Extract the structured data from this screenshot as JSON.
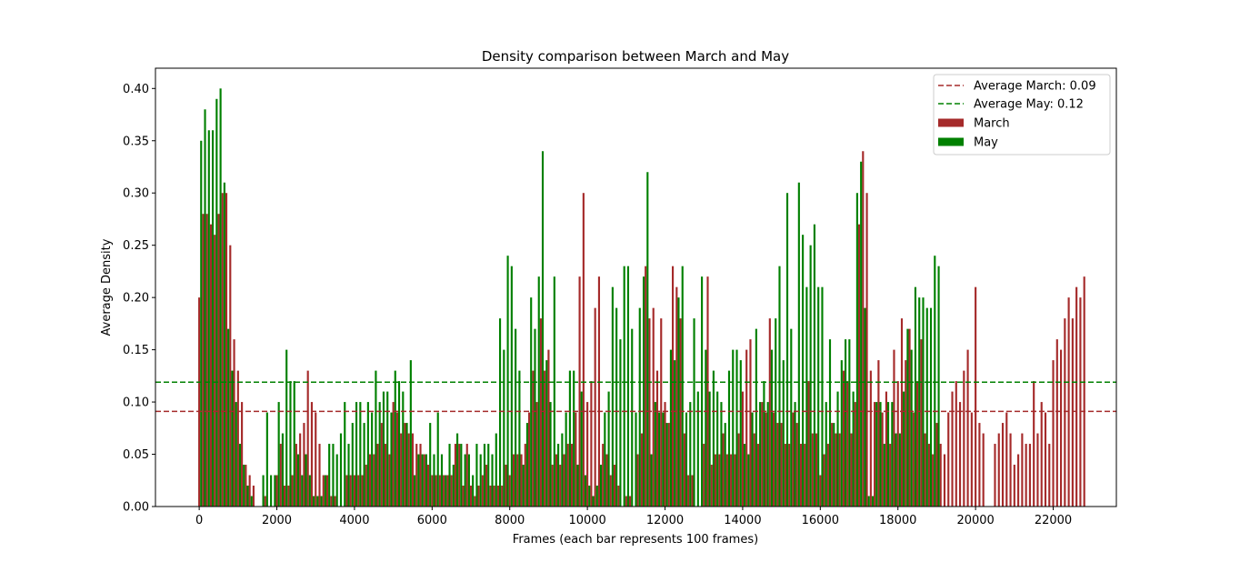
{
  "chart_data": {
    "type": "bar",
    "title": "Density comparison between March and May",
    "xlabel": "Frames (each bar represents 100 frames)",
    "ylabel": "Average Density",
    "xlim": [
      -1127,
      23627
    ],
    "ylim": [
      0,
      0.4194
    ],
    "xticks": [
      0,
      2000,
      4000,
      6000,
      8000,
      10000,
      12000,
      14000,
      16000,
      18000,
      20000,
      22000
    ],
    "yticks": [
      0.0,
      0.05,
      0.1,
      0.15,
      0.2,
      0.25,
      0.3,
      0.35,
      0.4
    ],
    "ytick_labels": [
      "0.00",
      "0.05",
      "0.10",
      "0.15",
      "0.20",
      "0.25",
      "0.30",
      "0.35",
      "0.40"
    ],
    "bar_width": 50,
    "legend_position": "upper right",
    "grid": false,
    "hlines": [
      {
        "label": "Average March: 0.09",
        "value": 0.091,
        "color": "#a52a2a",
        "style": "dashed"
      },
      {
        "label": "Average May: 0.12",
        "value": 0.119,
        "color": "#008000",
        "style": "dashed"
      }
    ],
    "series": [
      {
        "name": "March",
        "color": "#a52a2a",
        "x_start": 0,
        "x_step": 100,
        "values": [
          0.2,
          0.28,
          0.28,
          0.27,
          0.26,
          0.28,
          0.3,
          0.3,
          0.25,
          0.16,
          0.13,
          0.1,
          0.04,
          0.03,
          0.02,
          0.0,
          0.0,
          0.01,
          0.0,
          0.0,
          0.03,
          0.06,
          0.02,
          0.02,
          0.03,
          0.06,
          0.07,
          0.08,
          0.13,
          0.1,
          0.09,
          0.06,
          0.03,
          0.03,
          0.01,
          0.01,
          0.0,
          0.0,
          0.03,
          0.03,
          0.03,
          0.03,
          0.03,
          0.04,
          0.05,
          0.05,
          0.06,
          0.08,
          0.06,
          0.05,
          0.1,
          0.09,
          0.07,
          0.08,
          0.07,
          0.07,
          0.06,
          0.06,
          0.05,
          0.04,
          0.03,
          0.03,
          0.03,
          0.03,
          0.03,
          0.03,
          0.06,
          0.06,
          0.02,
          0.06,
          0.02,
          0.01,
          0.02,
          0.03,
          0.04,
          0.02,
          0.02,
          0.02,
          0.02,
          0.04,
          0.03,
          0.05,
          0.05,
          0.05,
          0.06,
          0.09,
          0.13,
          0.1,
          0.18,
          0.13,
          0.15,
          0.04,
          0.05,
          0.04,
          0.05,
          0.06,
          0.06,
          0.09,
          0.22,
          0.3,
          0.1,
          0.12,
          0.19,
          0.22,
          0.06,
          0.05,
          0.03,
          0.04,
          0.02,
          0.0,
          0.01,
          0.01,
          0.0,
          0.05,
          0.07,
          0.23,
          0.18,
          0.19,
          0.13,
          0.18,
          0.1,
          0.08,
          0.23,
          0.21,
          0.18,
          0.07,
          0.03,
          0.03,
          0.0,
          0.0,
          0.06,
          0.22,
          0.04,
          0.05,
          0.05,
          0.07,
          0.05,
          0.05,
          0.05,
          0.07,
          0.11,
          0.15,
          0.16,
          0.07,
          0.06,
          0.1,
          0.09,
          0.18,
          0.09,
          0.08,
          0.08,
          0.06,
          0.06,
          0.09,
          0.08,
          0.06,
          0.06,
          0.12,
          0.07,
          0.07,
          0.03,
          0.05,
          0.06,
          0.08,
          0.07,
          0.07,
          0.13,
          0.12,
          0.07,
          0.1,
          0.27,
          0.34,
          0.3,
          0.13,
          0.1,
          0.14,
          0.09,
          0.11,
          0.06,
          0.15,
          0.12,
          0.18,
          0.14,
          0.17,
          0.09,
          0.12,
          0.16,
          0.07,
          0.06,
          0.05,
          0.08,
          0.06,
          0.05,
          0.09,
          0.11,
          0.12,
          0.1,
          0.13,
          0.15,
          0.09,
          0.21,
          0.08,
          0.07,
          0.0,
          0.0,
          0.06,
          0.07,
          0.08,
          0.09,
          0.07,
          0.04,
          0.05,
          0.07,
          0.06,
          0.06,
          0.12,
          0.07,
          0.1,
          0.09,
          0.06,
          0.14,
          0.16,
          0.15,
          0.18,
          0.2,
          0.18,
          0.21,
          0.2,
          0.22
        ]
      },
      {
        "name": "May",
        "color": "#008000",
        "x_start": 0,
        "x_step": 100,
        "values": [
          0.35,
          0.38,
          0.36,
          0.36,
          0.39,
          0.4,
          0.31,
          0.17,
          0.13,
          0.1,
          0.06,
          0.04,
          0.02,
          0.01,
          0.0,
          0.0,
          0.03,
          0.09,
          0.03,
          0.03,
          0.1,
          0.07,
          0.15,
          0.12,
          0.12,
          0.05,
          0.03,
          0.05,
          0.03,
          0.01,
          0.01,
          0.01,
          0.03,
          0.06,
          0.06,
          0.05,
          0.07,
          0.1,
          0.06,
          0.08,
          0.1,
          0.1,
          0.08,
          0.1,
          0.09,
          0.13,
          0.1,
          0.11,
          0.11,
          0.09,
          0.13,
          0.12,
          0.11,
          0.08,
          0.14,
          0.03,
          0.05,
          0.05,
          0.05,
          0.08,
          0.05,
          0.09,
          0.05,
          0.03,
          0.06,
          0.04,
          0.07,
          0.06,
          0.05,
          0.05,
          0.03,
          0.06,
          0.05,
          0.06,
          0.06,
          0.05,
          0.07,
          0.18,
          0.15,
          0.24,
          0.23,
          0.17,
          0.13,
          0.04,
          0.08,
          0.2,
          0.17,
          0.22,
          0.34,
          0.14,
          0.1,
          0.22,
          0.06,
          0.07,
          0.09,
          0.13,
          0.13,
          0.04,
          0.11,
          0.03,
          0.02,
          0.01,
          0.02,
          0.04,
          0.09,
          0.11,
          0.21,
          0.19,
          0.16,
          0.23,
          0.23,
          0.17,
          0.09,
          0.19,
          0.22,
          0.32,
          0.05,
          0.1,
          0.09,
          0.09,
          0.08,
          0.15,
          0.14,
          0.2,
          0.23,
          0.09,
          0.1,
          0.18,
          0.11,
          0.22,
          0.15,
          0.11,
          0.13,
          0.11,
          0.1,
          0.08,
          0.13,
          0.15,
          0.15,
          0.14,
          0.06,
          0.05,
          0.09,
          0.17,
          0.1,
          0.12,
          0.1,
          0.15,
          0.18,
          0.23,
          0.14,
          0.3,
          0.17,
          0.1,
          0.31,
          0.26,
          0.21,
          0.25,
          0.27,
          0.21,
          0.21,
          0.1,
          0.16,
          0.08,
          0.11,
          0.14,
          0.16,
          0.16,
          0.11,
          0.3,
          0.33,
          0.19,
          0.01,
          0.01,
          0.1,
          0.1,
          0.06,
          0.1,
          0.1,
          0.07,
          0.07,
          0.11,
          0.17,
          0.15,
          0.21,
          0.2,
          0.2,
          0.19,
          0.19,
          0.24,
          0.23
        ]
      }
    ]
  }
}
